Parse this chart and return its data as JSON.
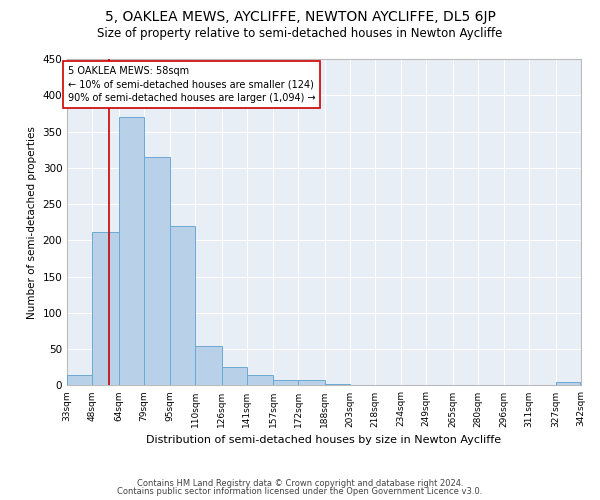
{
  "title": "5, OAKLEA MEWS, AYCLIFFE, NEWTON AYCLIFFE, DL5 6JP",
  "subtitle": "Size of property relative to semi-detached houses in Newton Aycliffe",
  "xlabel": "Distribution of semi-detached houses by size in Newton Aycliffe",
  "ylabel": "Number of semi-detached properties",
  "bins": [
    33,
    48,
    64,
    79,
    95,
    110,
    126,
    141,
    157,
    172,
    188,
    203,
    218,
    234,
    249,
    265,
    280,
    296,
    311,
    327,
    342
  ],
  "bin_labels": [
    "33sqm",
    "48sqm",
    "64sqm",
    "79sqm",
    "95sqm",
    "110sqm",
    "126sqm",
    "141sqm",
    "157sqm",
    "172sqm",
    "188sqm",
    "203sqm",
    "218sqm",
    "234sqm",
    "249sqm",
    "265sqm",
    "280sqm",
    "296sqm",
    "311sqm",
    "327sqm",
    "342sqm"
  ],
  "counts": [
    15,
    212,
    370,
    315,
    220,
    55,
    25,
    15,
    8,
    8,
    2,
    0,
    0,
    0,
    0,
    0,
    0,
    0,
    0,
    5
  ],
  "bar_color": "#b8d0e8",
  "bar_edge_color": "#6aaad4",
  "property_size": 58,
  "property_line_color": "#cc0000",
  "annotation_text": "5 OAKLEA MEWS: 58sqm\n← 10% of semi-detached houses are smaller (124)\n90% of semi-detached houses are larger (1,094) →",
  "annotation_box_color": "white",
  "annotation_box_edge": "#cc0000",
  "footer1": "Contains HM Land Registry data © Crown copyright and database right 2024.",
  "footer2": "Contains public sector information licensed under the Open Government Licence v3.0.",
  "ylim": [
    0,
    450
  ],
  "yticks": [
    0,
    50,
    100,
    150,
    200,
    250,
    300,
    350,
    400,
    450
  ],
  "background_color": "#e8eef5",
  "grid_color": "white"
}
